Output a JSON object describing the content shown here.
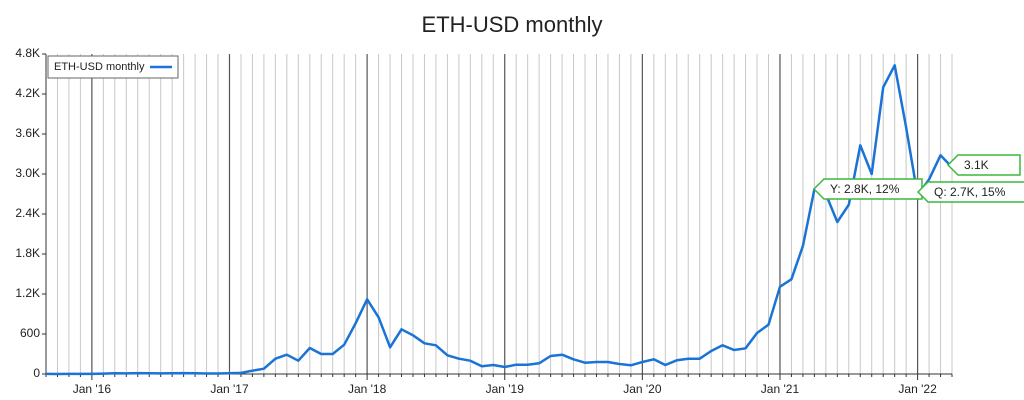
{
  "chart_data": {
    "type": "line",
    "title": "ETH-USD monthly",
    "categories": [
      null,
      null,
      null,
      null,
      "Jan '16",
      null,
      null,
      null,
      null,
      null,
      null,
      null,
      null,
      null,
      null,
      null,
      "Jan '17",
      null,
      null,
      null,
      null,
      null,
      null,
      null,
      null,
      null,
      null,
      null,
      "Jan '18",
      null,
      null,
      null,
      null,
      null,
      null,
      null,
      null,
      null,
      null,
      null,
      "Jan '19",
      null,
      null,
      null,
      null,
      null,
      null,
      null,
      null,
      null,
      null,
      null,
      "Jan '20",
      null,
      null,
      null,
      null,
      null,
      null,
      null,
      null,
      null,
      null,
      null,
      "Jan '21",
      null,
      null,
      null,
      null,
      null,
      null,
      null,
      null,
      null,
      null,
      null,
      "Jan '22",
      null,
      null,
      null
    ],
    "series": [
      {
        "name": "ETH-USD monthly",
        "color": "#1a73d6",
        "values": [
          1,
          0.7,
          1,
          0.9,
          1,
          6,
          11,
          9,
          14,
          12,
          9,
          11,
          13,
          11,
          8,
          8,
          10,
          16,
          50,
          80,
          230,
          290,
          200,
          390,
          300,
          300,
          440,
          760,
          1120,
          850,
          400,
          670,
          580,
          460,
          430,
          280,
          230,
          200,
          115,
          135,
          105,
          140,
          140,
          160,
          270,
          290,
          220,
          170,
          180,
          180,
          150,
          130,
          180,
          220,
          135,
          205,
          230,
          230,
          345,
          430,
          360,
          385,
          615,
          740,
          1310,
          1420,
          1920,
          2770,
          2700,
          2280,
          2540,
          3430,
          3000,
          4300,
          4630,
          3700,
          2680,
          2920,
          3280,
          3100
        ]
      }
    ],
    "ylim": [
      0,
      4800
    ],
    "yticks": [
      0,
      600,
      {
        "value": 1200,
        "label": "1.2K"
      },
      {
        "value": 1800,
        "label": "1.8K"
      },
      {
        "value": 2400,
        "label": "2.4K"
      },
      {
        "value": 3000,
        "label": "3.0K"
      },
      {
        "value": 3600,
        "label": "3.6K"
      },
      {
        "value": 4200,
        "label": "4.2K"
      },
      {
        "value": 4800,
        "label": "4.8K"
      }
    ],
    "grid": true,
    "legend": "top-left",
    "annotations": [
      "3.1K",
      "Y: 2.8K, 12%",
      "Q: 2.7K, 15%"
    ]
  }
}
